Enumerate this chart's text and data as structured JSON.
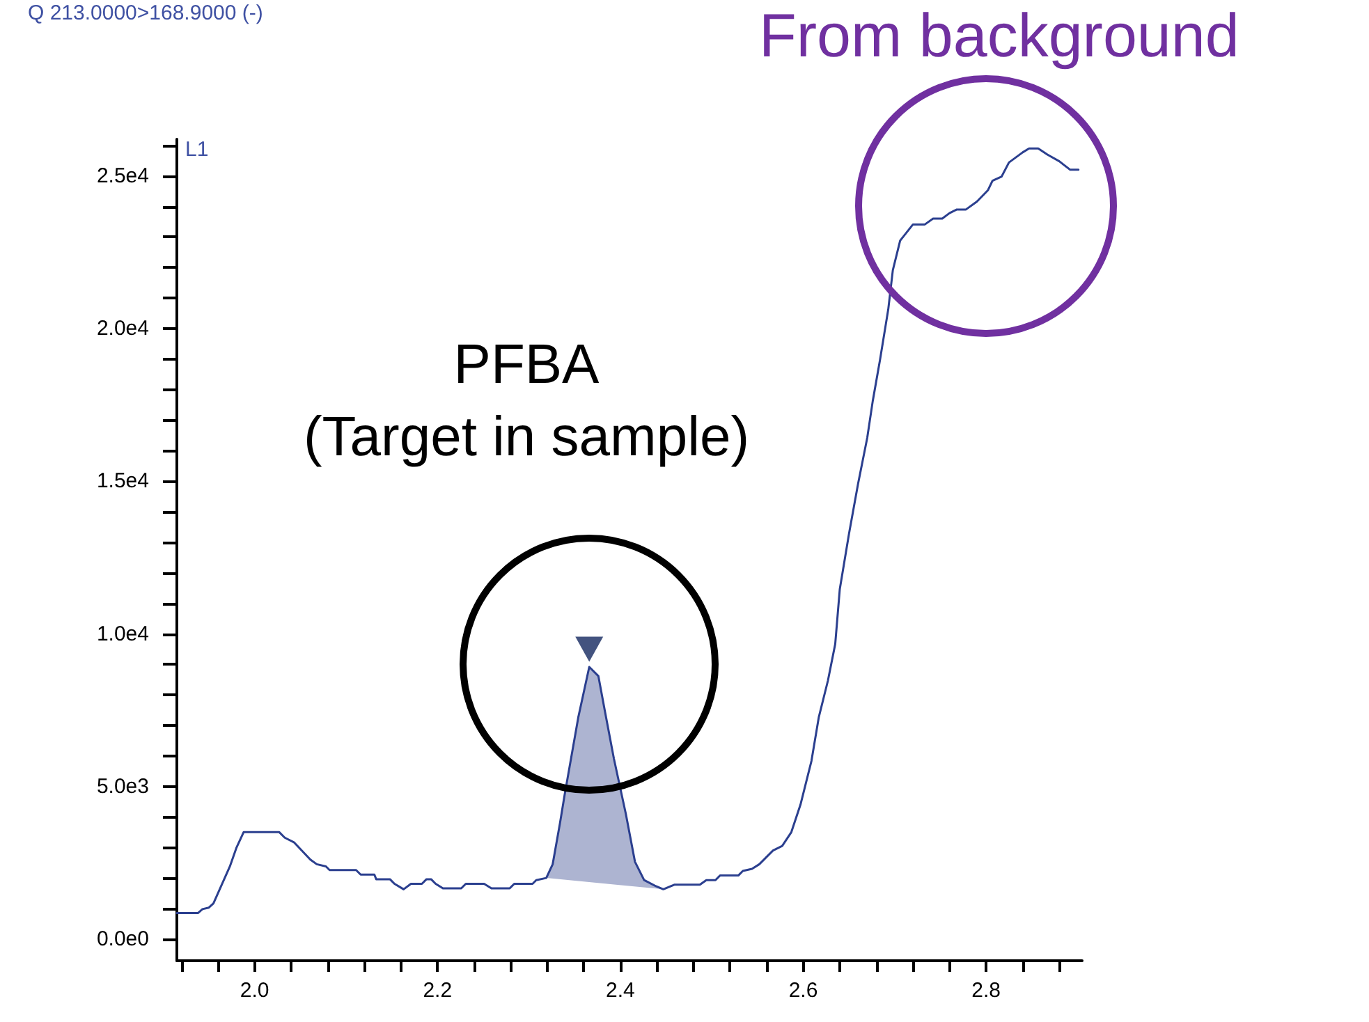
{
  "chart_data": {
    "type": "line",
    "title": "Q 213.0000>168.9000 (-)",
    "annotations": [
      "L1",
      "PFBA\n(Target in sample)",
      "From background"
    ],
    "xlim": [
      1.915,
      2.905
    ],
    "xticks": [
      {
        "value": 1.92,
        "label": null
      },
      {
        "value": 1.96,
        "label": null
      },
      {
        "value": 2,
        "label": "2.0"
      },
      {
        "value": 2.04,
        "label": null
      },
      {
        "value": 2.08,
        "label": null
      },
      {
        "value": 2.12,
        "label": null
      },
      {
        "value": 2.16,
        "label": null
      },
      {
        "value": 2.2,
        "label": "2.2"
      },
      {
        "value": 2.24,
        "label": null
      },
      {
        "value": 2.28,
        "label": null
      },
      {
        "value": 2.32,
        "label": null
      },
      {
        "value": 2.36,
        "label": null
      },
      {
        "value": 2.4,
        "label": "2.4"
      },
      {
        "value": 2.44,
        "label": null
      },
      {
        "value": 2.48,
        "label": null
      },
      {
        "value": 2.52,
        "label": null
      },
      {
        "value": 2.56,
        "label": null
      },
      {
        "value": 2.6,
        "label": "2.6"
      },
      {
        "value": 2.64,
        "label": null
      },
      {
        "value": 2.68,
        "label": null
      },
      {
        "value": 2.72,
        "label": null
      },
      {
        "value": 2.76,
        "label": null
      },
      {
        "value": 2.8,
        "label": "2.8"
      },
      {
        "value": 2.84,
        "label": null
      },
      {
        "value": 2.88,
        "label": null
      }
    ],
    "ylim": [
      -700,
      26200
    ],
    "yticks": [
      {
        "value": 0,
        "label": "0.0e0"
      },
      {
        "value": 1000,
        "label": null
      },
      {
        "value": 2000,
        "label": null
      },
      {
        "value": 3000,
        "label": null
      },
      {
        "value": 4000,
        "label": null
      },
      {
        "value": 5000,
        "label": "5.0e3"
      },
      {
        "value": 6000,
        "label": null
      },
      {
        "value": 7000,
        "label": null
      },
      {
        "value": 8000,
        "label": null
      },
      {
        "value": 9000,
        "label": null
      },
      {
        "value": 10000,
        "label": "1.0e4"
      },
      {
        "value": 11000,
        "label": null
      },
      {
        "value": 12000,
        "label": null
      },
      {
        "value": 13000,
        "label": null
      },
      {
        "value": 14000,
        "label": null
      },
      {
        "value": 15000,
        "label": "1.5e4"
      },
      {
        "value": 16000,
        "label": null
      },
      {
        "value": 17000,
        "label": null
      },
      {
        "value": 18000,
        "label": null
      },
      {
        "value": 19000,
        "label": null
      },
      {
        "value": 20000,
        "label": "2.0e4"
      },
      {
        "value": 21000,
        "label": null
      },
      {
        "value": 22000,
        "label": null
      },
      {
        "value": 23000,
        "label": null
      },
      {
        "value": 24000,
        "label": null
      },
      {
        "value": 25000,
        "label": "2.5e4"
      },
      {
        "value": 26000,
        "label": null
      }
    ],
    "marker": "none",
    "line_style": "solid",
    "series": [
      {
        "type": "area",
        "color": "#adb4d1",
        "x": [
          2.319,
          2.326,
          2.334,
          2.339,
          2.354,
          2.366,
          2.376,
          2.383,
          2.393,
          2.406,
          2.416,
          2.426,
          2.439,
          2.447
        ],
        "values": [
          2010,
          2460,
          3810,
          4720,
          7270,
          8920,
          8620,
          7490,
          5910,
          4110,
          2540,
          1940,
          1740,
          1640
        ]
      },
      {
        "color": "#2b3f8f",
        "x": [
          1.915,
          1.938,
          1.943,
          1.95,
          1.955,
          1.973,
          1.98,
          1.988,
          2.027,
          2.033,
          2.043,
          2.061,
          2.068,
          2.078,
          2.082,
          2.111,
          2.116,
          2.131,
          2.133,
          2.148,
          2.153,
          2.163,
          2.171,
          2.183,
          2.188,
          2.193,
          2.198,
          2.206,
          2.226,
          2.231,
          2.251,
          2.259,
          2.279,
          2.284,
          2.304,
          2.308,
          2.319,
          2.326,
          2.334,
          2.339,
          2.354,
          2.366,
          2.376,
          2.383,
          2.393,
          2.406,
          2.416,
          2.426,
          2.439,
          2.447,
          2.459,
          2.487,
          2.494,
          2.504,
          2.509,
          2.529,
          2.534,
          2.544,
          2.552,
          2.567,
          2.577,
          2.587,
          2.597,
          2.609,
          2.617,
          2.627,
          2.635,
          2.64,
          2.65,
          2.66,
          2.67,
          2.676,
          2.684,
          2.693,
          2.698,
          2.706,
          2.72,
          2.733,
          2.742,
          2.752,
          2.76,
          2.768,
          2.778,
          2.79,
          2.802,
          2.807,
          2.817,
          2.825,
          2.84,
          2.847,
          2.857,
          2.867,
          2.88,
          2.892,
          2.901
        ],
        "values": [
          860,
          860,
          990,
          1040,
          1180,
          2390,
          2990,
          3510,
          3510,
          3330,
          3180,
          2610,
          2460,
          2390,
          2270,
          2270,
          2120,
          2120,
          1970,
          1970,
          1820,
          1640,
          1820,
          1820,
          1970,
          1970,
          1820,
          1670,
          1670,
          1820,
          1820,
          1670,
          1670,
          1820,
          1820,
          1940,
          2010,
          2460,
          3810,
          4720,
          7270,
          8920,
          8620,
          7490,
          5910,
          4110,
          2540,
          1940,
          1740,
          1640,
          1790,
          1790,
          1940,
          1940,
          2090,
          2090,
          2240,
          2310,
          2460,
          2910,
          3060,
          3510,
          4410,
          5840,
          7270,
          8470,
          9670,
          11470,
          13270,
          14920,
          16420,
          17620,
          18980,
          20630,
          21910,
          22880,
          23410,
          23410,
          23600,
          23600,
          23780,
          23900,
          23900,
          24160,
          24530,
          24840,
          24980,
          25440,
          25770,
          25900,
          25900,
          25700,
          25480,
          25200,
          25200
        ]
      },
      {
        "type": "scatter",
        "marker": "triangle",
        "color": "#14285f",
        "x": [
          2.366
        ],
        "values": [
          9500
        ]
      }
    ]
  }
}
